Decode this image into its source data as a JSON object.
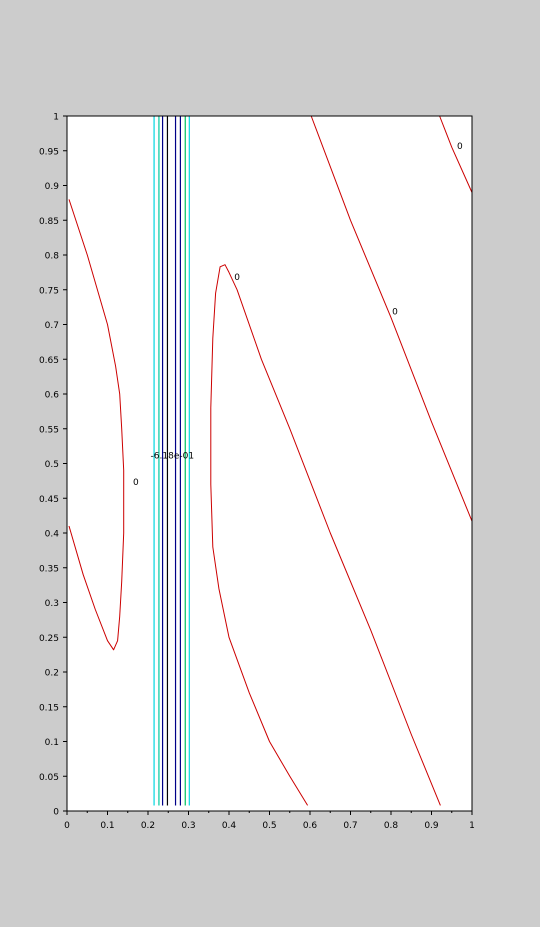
{
  "figure": {
    "background": "#cccccc",
    "plot_background": "#ffffff"
  },
  "chart_data": {
    "type": "contour",
    "title": "",
    "xlabel": "",
    "ylabel": "",
    "xlim": [
      0,
      1
    ],
    "ylim": [
      0,
      1
    ],
    "grid": false,
    "xticks": [
      "0",
      "0.1",
      "0.2",
      "0.3",
      "0.4",
      "0.5",
      "0.6",
      "0.7",
      "0.8",
      "0.9",
      "1"
    ],
    "yticks": [
      "0",
      "0.05",
      "0.1",
      "0.15",
      "0.2",
      "0.25",
      "0.3",
      "0.35",
      "0.4",
      "0.45",
      "0.5",
      "0.55",
      "0.6",
      "0.65",
      "0.7",
      "0.75",
      "0.8",
      "0.85",
      "0.9",
      "0.95",
      "1"
    ],
    "vertical_levels": [
      {
        "x": 0.215,
        "color": "#00d8e0"
      },
      {
        "x": 0.227,
        "color": "#00c8a0"
      },
      {
        "x": 0.236,
        "color": "#000088"
      },
      {
        "x": 0.248,
        "color": "#000000"
      },
      {
        "x": 0.268,
        "color": "#000088"
      },
      {
        "x": 0.28,
        "color": "#000088"
      },
      {
        "x": 0.292,
        "color": "#00c060"
      },
      {
        "x": 0.302,
        "color": "#00d8e0"
      }
    ],
    "center_label": {
      "text": "-6.18e-01",
      "x": 0.26,
      "y": 0.513
    },
    "zero_contours": {
      "color": "#cc0000",
      "curves": [
        [
          [
            0.005,
            0.88
          ],
          [
            0.05,
            0.8
          ],
          [
            0.1,
            0.7
          ],
          [
            0.12,
            0.64
          ],
          [
            0.13,
            0.6
          ],
          [
            0.135,
            0.55
          ],
          [
            0.14,
            0.49
          ],
          [
            0.14,
            0.4
          ],
          [
            0.135,
            0.33
          ],
          [
            0.13,
            0.28
          ],
          [
            0.125,
            0.245
          ],
          [
            0.115,
            0.232
          ],
          [
            0.1,
            0.245
          ],
          [
            0.07,
            0.29
          ],
          [
            0.04,
            0.34
          ],
          [
            0.005,
            0.41
          ]
        ],
        [
          [
            0.594,
            0.008
          ],
          [
            0.55,
            0.05
          ],
          [
            0.5,
            0.1
          ],
          [
            0.45,
            0.17
          ],
          [
            0.4,
            0.25
          ],
          [
            0.375,
            0.32
          ],
          [
            0.36,
            0.38
          ],
          [
            0.355,
            0.47
          ],
          [
            0.355,
            0.58
          ],
          [
            0.36,
            0.68
          ],
          [
            0.367,
            0.745
          ],
          [
            0.378,
            0.783
          ],
          [
            0.39,
            0.786
          ],
          [
            0.4,
            0.775
          ],
          [
            0.42,
            0.75
          ],
          [
            0.48,
            0.65
          ],
          [
            0.55,
            0.55
          ],
          [
            0.65,
            0.4
          ],
          [
            0.75,
            0.26
          ],
          [
            0.85,
            0.11
          ],
          [
            0.922,
            0.008
          ]
        ],
        [
          [
            0.603,
            1.0
          ],
          [
            0.7,
            0.85
          ],
          [
            0.8,
            0.71
          ],
          [
            0.9,
            0.56
          ],
          [
            1.0,
            0.417
          ]
        ],
        [
          [
            0.92,
            1.0
          ],
          [
            0.95,
            0.955
          ],
          [
            1.0,
            0.89
          ]
        ]
      ],
      "labels": [
        {
          "text": "0",
          "x": 0.17,
          "y": 0.475
        },
        {
          "text": "0",
          "x": 0.42,
          "y": 0.77
        },
        {
          "text": "0",
          "x": 0.81,
          "y": 0.72
        },
        {
          "text": "0",
          "x": 0.97,
          "y": 0.958
        }
      ]
    }
  }
}
